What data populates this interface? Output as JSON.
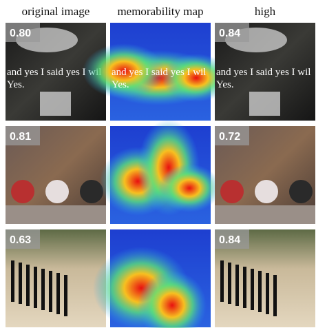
{
  "header": {
    "columns": [
      "original image",
      "memorability map",
      "high"
    ]
  },
  "rows": [
    {
      "original_score": "0.80",
      "high_score": "0.84",
      "overlay": [
        "and yes I said yes I wil",
        "Yes."
      ]
    },
    {
      "original_score": "0.81",
      "high_score": "0.72"
    },
    {
      "original_score": "0.63",
      "high_score": "0.84"
    }
  ]
}
